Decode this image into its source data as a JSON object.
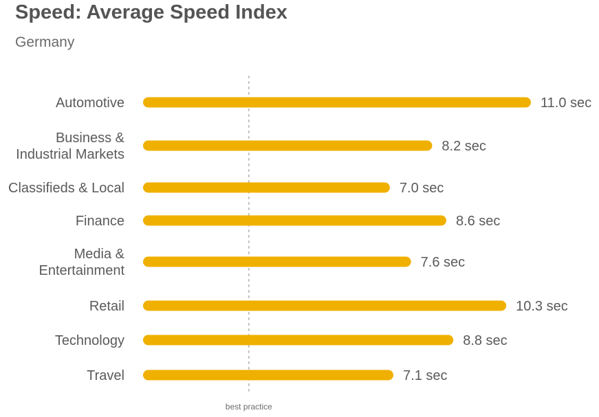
{
  "chart_data": {
    "type": "bar",
    "orientation": "horizontal",
    "title": "Speed: Average Speed Index",
    "subtitle": "Germany",
    "categories": [
      [
        "Automotive"
      ],
      [
        "Business &",
        "Industrial Markets"
      ],
      [
        "Classifieds & Local"
      ],
      [
        "Finance"
      ],
      [
        "Media &",
        "Entertainment"
      ],
      [
        "Retail"
      ],
      [
        "Technology"
      ],
      [
        "Travel"
      ]
    ],
    "values": [
      11.0,
      8.2,
      7.0,
      8.6,
      7.6,
      10.3,
      8.8,
      7.1
    ],
    "value_labels": [
      "11.0 sec",
      "8.2 sec",
      "7.0 sec",
      "8.6 sec",
      "7.6 sec",
      "10.3 sec",
      "8.8 sec",
      "7.1 sec"
    ],
    "unit": "sec",
    "reference_line": {
      "value": 3.0,
      "label": "best practice",
      "style": "dotted"
    },
    "xlim": [
      0,
      11.0
    ],
    "grid": false,
    "bar_color": "#F0B000",
    "reference_color": "#bdbdbd",
    "text_color": "#5a5a5a"
  }
}
